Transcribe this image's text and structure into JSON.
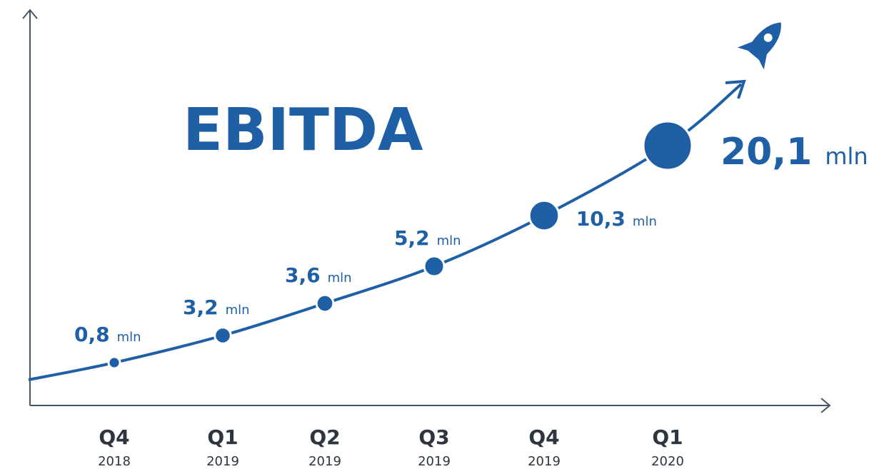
{
  "chart_data": {
    "type": "line",
    "title": "EBITDA",
    "categories": [
      "Q4",
      "Q1",
      "Q2",
      "Q3",
      "Q4",
      "Q1"
    ],
    "category_years": [
      "2018",
      "2019",
      "2019",
      "2019",
      "2019",
      "2020"
    ],
    "values": [
      0.8,
      3.2,
      3.6,
      5.2,
      10.3,
      20.1
    ],
    "value_labels": [
      "0,8",
      "3,2",
      "3,6",
      "5,2",
      "10,3",
      "20,1"
    ],
    "unit": "mln",
    "color": "#1f5fa6"
  }
}
